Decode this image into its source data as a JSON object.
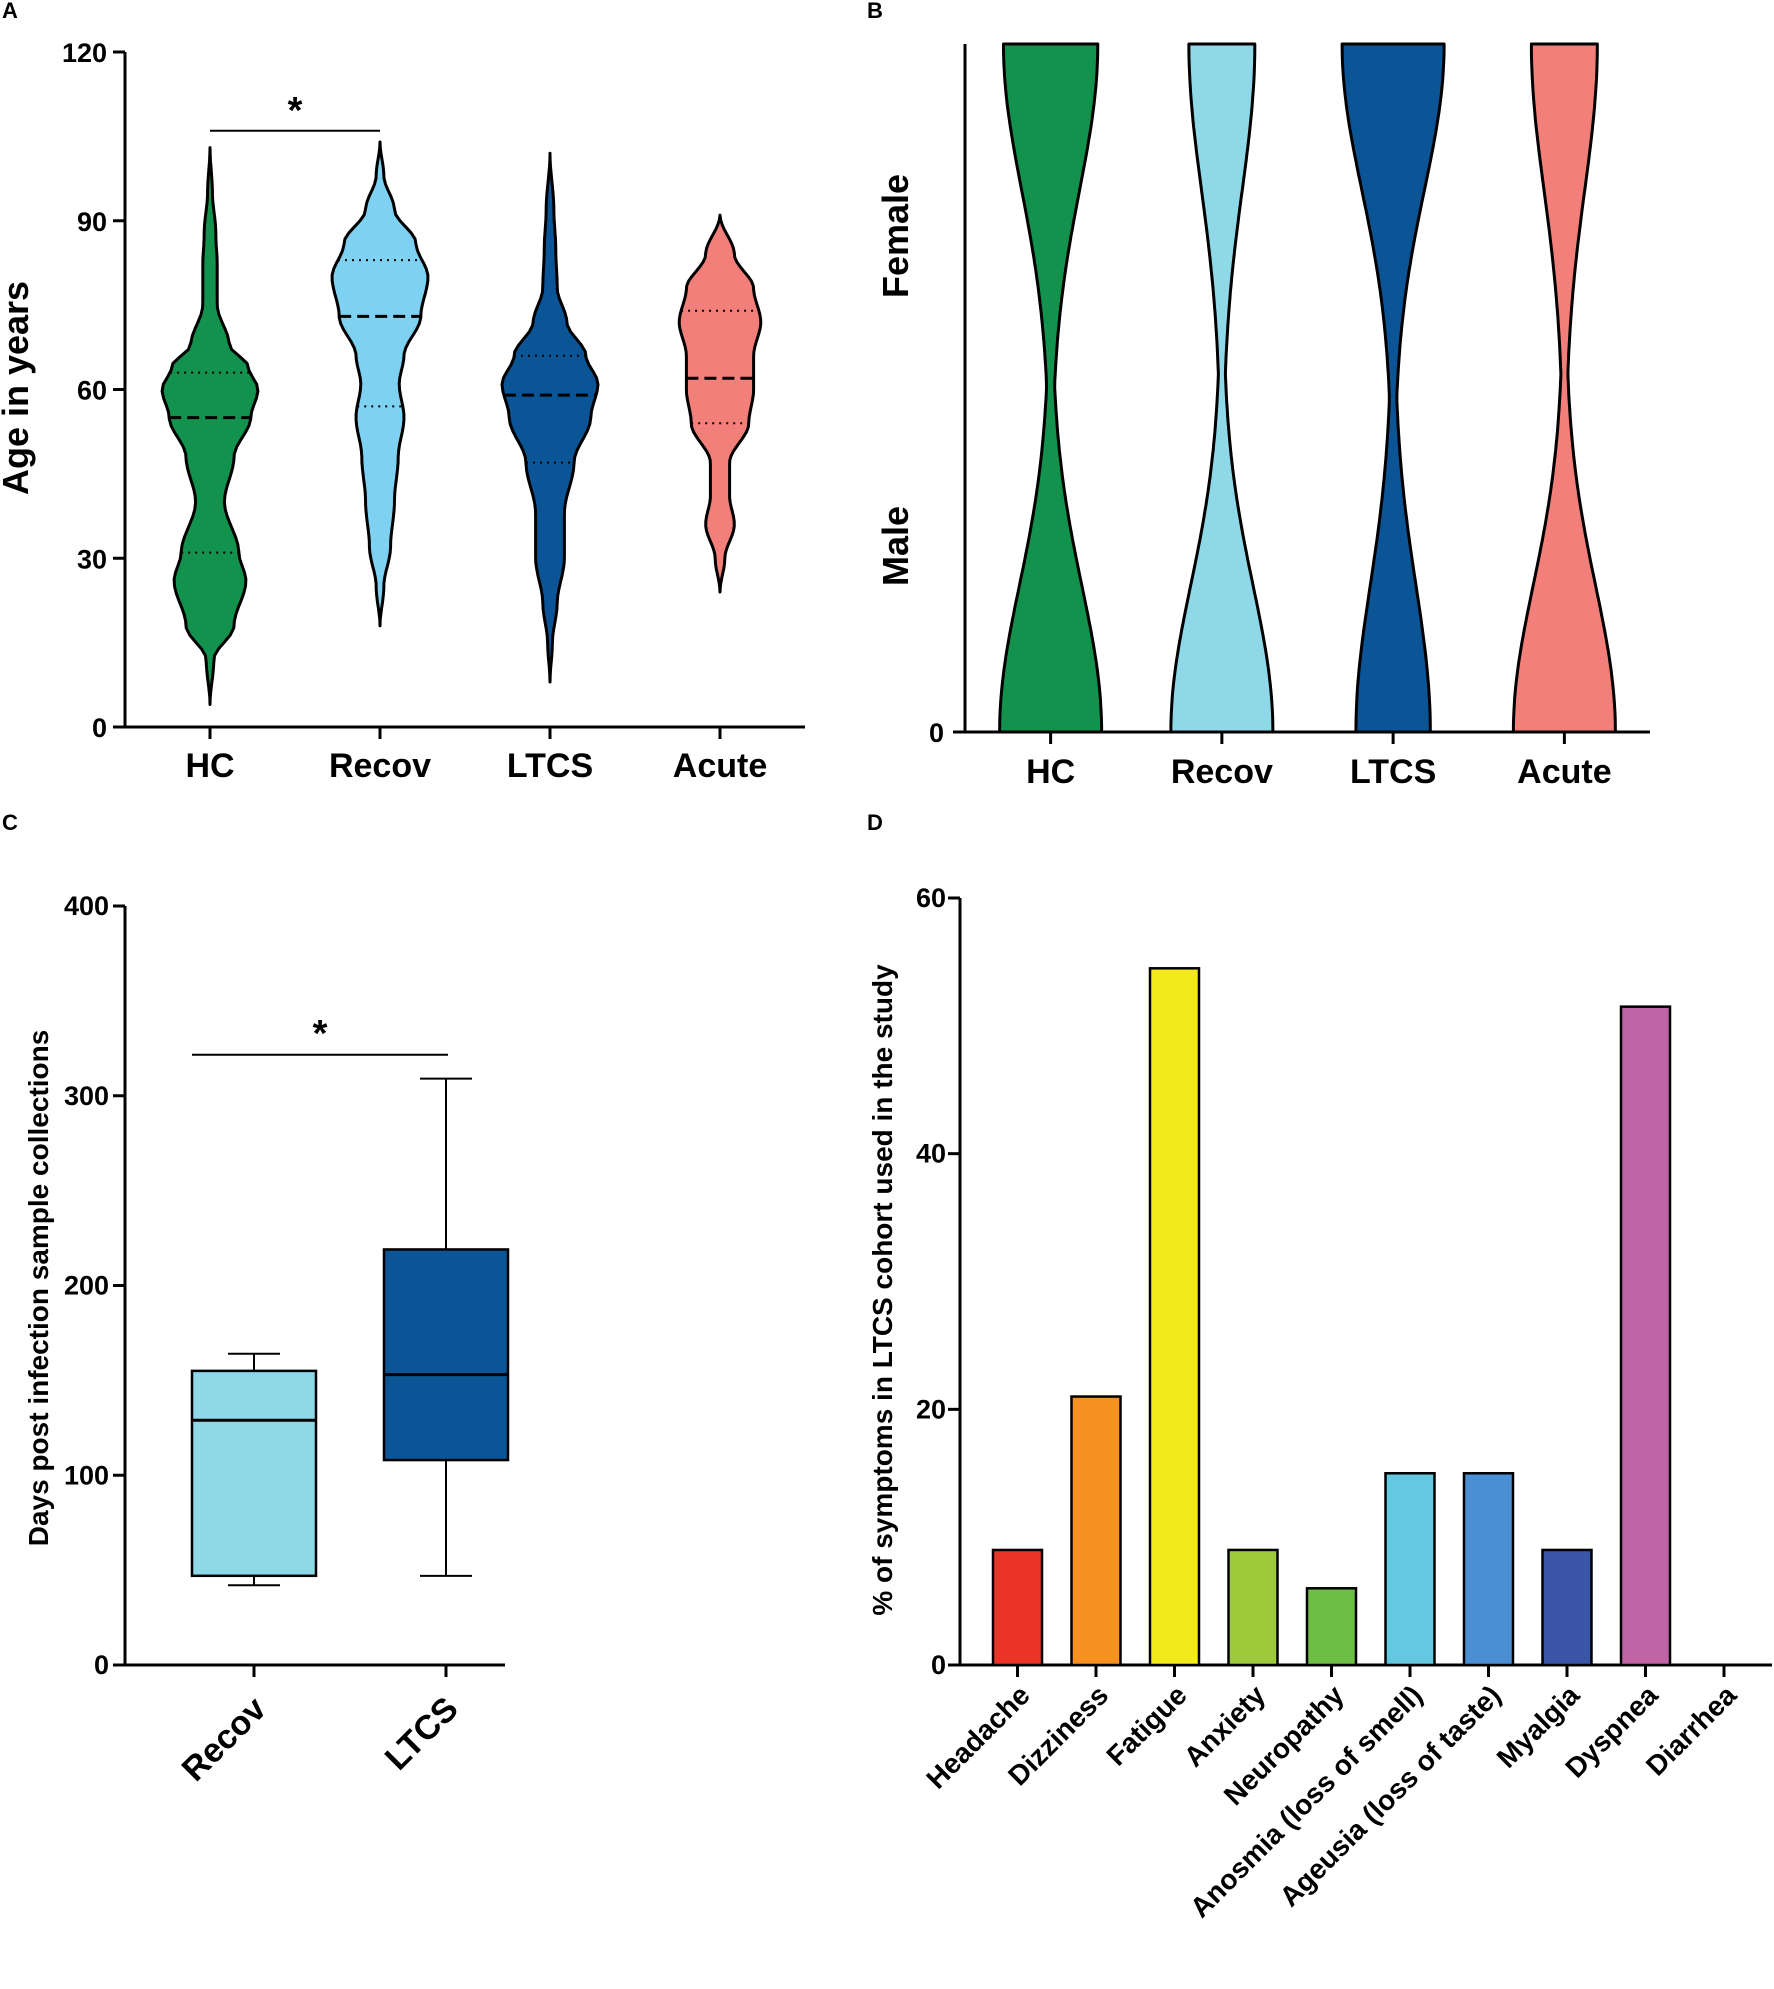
{
  "chart_data": [
    {
      "panel": "A",
      "type": "violin",
      "ylabel": "Age in years",
      "ylim": [
        0,
        120
      ],
      "yticks": [
        0,
        30,
        60,
        90,
        120
      ],
      "categories": [
        "HC",
        "Recov",
        "LTCS",
        "Acute"
      ],
      "colors": [
        "#13924e",
        "#7fd1f2",
        "#0b5596",
        "#f27f7a"
      ],
      "violins": [
        {
          "name": "HC",
          "min": 4,
          "max": 103,
          "q1": 31,
          "median": 55,
          "q3": 63,
          "profile": [
            [
              4,
              0
            ],
            [
              12,
              0.08
            ],
            [
              18,
              0.5
            ],
            [
              26,
              0.75
            ],
            [
              31,
              0.6
            ],
            [
              40,
              0.3
            ],
            [
              48,
              0.5
            ],
            [
              55,
              0.85
            ],
            [
              60,
              1.0
            ],
            [
              64,
              0.8
            ],
            [
              68,
              0.4
            ],
            [
              75,
              0.15
            ],
            [
              82,
              0.15
            ],
            [
              88,
              0.12
            ],
            [
              95,
              0.05
            ],
            [
              103,
              0
            ]
          ]
        },
        {
          "name": "Recov",
          "min": 18,
          "max": 104,
          "q1": 57,
          "median": 73,
          "q3": 83,
          "profile": [
            [
              18,
              0
            ],
            [
              25,
              0.08
            ],
            [
              32,
              0.22
            ],
            [
              40,
              0.3
            ],
            [
              48,
              0.38
            ],
            [
              55,
              0.5
            ],
            [
              61,
              0.4
            ],
            [
              66,
              0.5
            ],
            [
              73,
              0.85
            ],
            [
              80,
              1.0
            ],
            [
              86,
              0.75
            ],
            [
              92,
              0.3
            ],
            [
              98,
              0.08
            ],
            [
              104,
              0
            ]
          ]
        },
        {
          "name": "LTCS",
          "min": 8,
          "max": 102,
          "q1": 47,
          "median": 59,
          "q3": 66,
          "profile": [
            [
              8,
              0
            ],
            [
              15,
              0.05
            ],
            [
              22,
              0.15
            ],
            [
              30,
              0.3
            ],
            [
              38,
              0.3
            ],
            [
              47,
              0.5
            ],
            [
              55,
              0.85
            ],
            [
              61,
              1.0
            ],
            [
              66,
              0.75
            ],
            [
              72,
              0.35
            ],
            [
              78,
              0.15
            ],
            [
              85,
              0.12
            ],
            [
              92,
              0.08
            ],
            [
              102,
              0
            ]
          ]
        },
        {
          "name": "Acute",
          "min": 24,
          "max": 91,
          "q1": 54,
          "median": 62,
          "q3": 74,
          "profile": [
            [
              24,
              0
            ],
            [
              30,
              0.1
            ],
            [
              36,
              0.3
            ],
            [
              41,
              0.2
            ],
            [
              47,
              0.2
            ],
            [
              54,
              0.6
            ],
            [
              60,
              0.7
            ],
            [
              66,
              0.7
            ],
            [
              72,
              0.85
            ],
            [
              78,
              0.7
            ],
            [
              84,
              0.3
            ],
            [
              91,
              0
            ]
          ]
        }
      ],
      "significance": {
        "from": "HC",
        "to": "Recov",
        "y": 106,
        "label": "*"
      }
    },
    {
      "panel": "B",
      "type": "violin",
      "ylabel_top": "Female",
      "ylabel_bottom": "Male",
      "ytick_label": "0",
      "categories": [
        "HC",
        "Recov",
        "LTCS",
        "Acute"
      ],
      "colors": [
        "#13924e",
        "#8ed8e8",
        "#0b5596",
        "#f27f7a"
      ],
      "female_share": [
        0.48,
        0.39,
        0.58,
        0.39
      ]
    },
    {
      "panel": "C",
      "type": "box",
      "ylabel": "Days post infection sample collections",
      "ylim": [
        0,
        400
      ],
      "yticks": [
        0,
        100,
        200,
        300,
        400
      ],
      "categories": [
        "Recov",
        "LTCS"
      ],
      "colors": [
        "#8ed8e8",
        "#0b5596"
      ],
      "boxes": [
        {
          "name": "Recov",
          "whisker_low": 42,
          "q1": 47,
          "median": 129,
          "q3": 155,
          "whisker_high": 164
        },
        {
          "name": "LTCS",
          "whisker_low": 47,
          "q1": 108,
          "median": 153,
          "q3": 219,
          "whisker_high": 309
        }
      ],
      "significance": {
        "from": "Recov",
        "to": "LTCS",
        "y": 320,
        "label": "*"
      }
    },
    {
      "panel": "D",
      "type": "bar",
      "ylabel": "% of symptoms in LTCS cohort used in the study",
      "ylim": [
        0,
        60
      ],
      "yticks": [
        0,
        20,
        40,
        60
      ],
      "categories": [
        "Headache",
        "Dizziness",
        "Fatigue",
        "Anxiety",
        "Neuropathy",
        "Anosmia (loss of smell)",
        "Ageusia (loss of taste)",
        "Myalgia",
        "Dyspnea",
        "Diarrhea"
      ],
      "values": [
        9,
        21,
        54.5,
        9,
        6,
        15,
        15,
        9,
        51.5,
        0
      ],
      "colors": [
        "#ea3427",
        "#f6911f",
        "#f3ea1c",
        "#9cca3b",
        "#6cbe45",
        "#63c8e0",
        "#4a8fd4",
        "#3b55a6",
        "#c064a6",
        "#888888"
      ]
    }
  ]
}
